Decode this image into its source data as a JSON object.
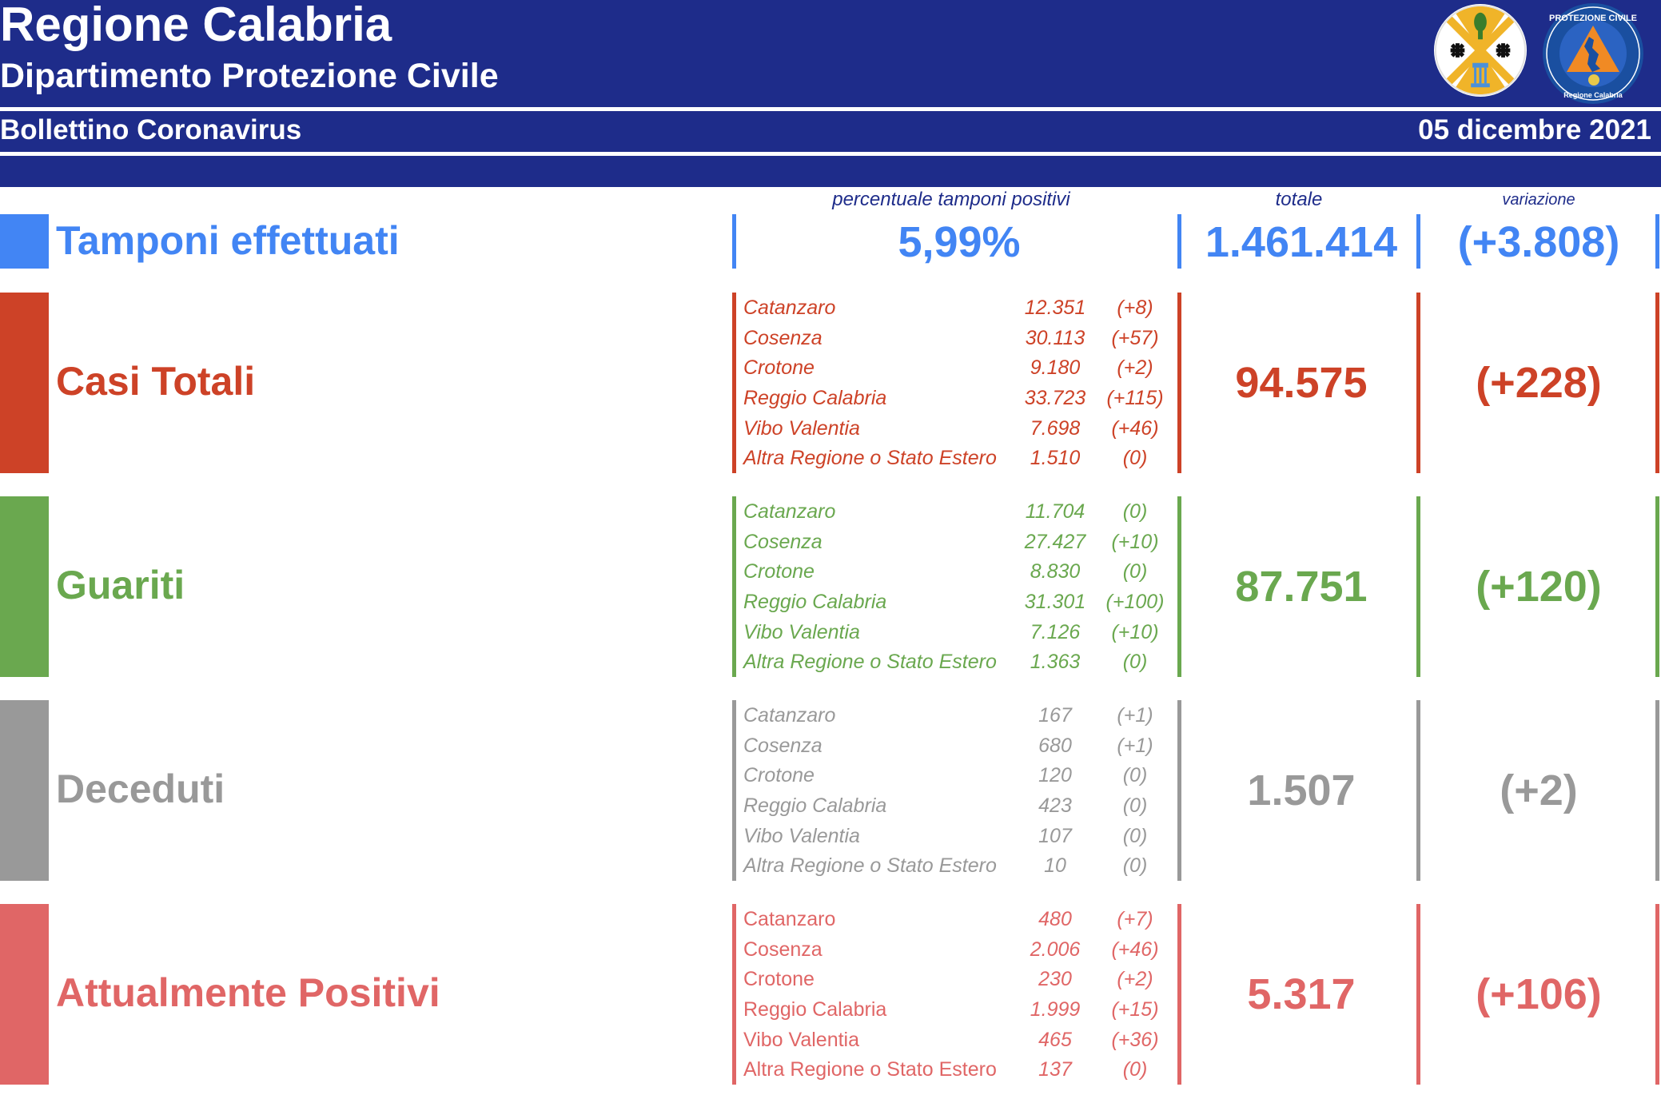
{
  "header": {
    "title": "Regione Calabria",
    "subtitle": "Dipartimento Protezione Civile",
    "bulletin": "Bollettino Coronavirus",
    "date": "05 dicembre 2021",
    "logo_left": {
      "name": "regione-calabria-emblem-icon"
    },
    "logo_right": {
      "name": "protezione-civile-logo-icon",
      "text_top": "PROTEZIONE CIVILE",
      "text_bottom": "Regione Calabria"
    }
  },
  "columns": {
    "pct": "percentuale tamponi positivi",
    "totale": "totale",
    "variazione": "variazione"
  },
  "tamponi": {
    "label": "Tamponi effettuati",
    "pct": "5,99%",
    "totale": "1.461.414",
    "variazione": "(+3.808)",
    "color": "#4285f4"
  },
  "sections": [
    {
      "key": "casi",
      "label": "Casi Totali",
      "color": "#cd4227",
      "totale": "94.575",
      "variazione": "(+228)",
      "rows": [
        {
          "prov": "Catanzaro",
          "val": "12.351",
          "chg": "(+8)"
        },
        {
          "prov": "Cosenza",
          "val": "30.113",
          "chg": "(+57)"
        },
        {
          "prov": "Crotone",
          "val": "9.180",
          "chg": "(+2)"
        },
        {
          "prov": "Reggio Calabria",
          "val": "33.723",
          "chg": "(+115)"
        },
        {
          "prov": "Vibo Valentia",
          "val": "7.698",
          "chg": "(+46)"
        },
        {
          "prov": "Altra Regione o Stato Estero",
          "val": "1.510",
          "chg": "(0)"
        }
      ]
    },
    {
      "key": "guariti",
      "label": "Guariti",
      "color": "#6aa84f",
      "totale": "87.751",
      "variazione": "(+120)",
      "rows": [
        {
          "prov": "Catanzaro",
          "val": "11.704",
          "chg": "(0)"
        },
        {
          "prov": "Cosenza",
          "val": "27.427",
          "chg": "(+10)"
        },
        {
          "prov": "Crotone",
          "val": "8.830",
          "chg": "(0)"
        },
        {
          "prov": "Reggio Calabria",
          "val": "31.301",
          "chg": "(+100)"
        },
        {
          "prov": "Vibo Valentia",
          "val": "7.126",
          "chg": "(+10)"
        },
        {
          "prov": "Altra Regione o Stato Estero",
          "val": "1.363",
          "chg": "(0)"
        }
      ]
    },
    {
      "key": "deceduti",
      "label": "Deceduti",
      "color": "#999999",
      "totale": "1.507",
      "variazione": "(+2)",
      "rows": [
        {
          "prov": "Catanzaro",
          "val": "167",
          "chg": "(+1)"
        },
        {
          "prov": "Cosenza",
          "val": "680",
          "chg": "(+1)"
        },
        {
          "prov": "Crotone",
          "val": "120",
          "chg": "(0)"
        },
        {
          "prov": "Reggio Calabria",
          "val": "423",
          "chg": "(0)"
        },
        {
          "prov": "Vibo Valentia",
          "val": "107",
          "chg": "(0)"
        },
        {
          "prov": "Altra Regione o Stato Estero",
          "val": "10",
          "chg": "(0)"
        }
      ]
    },
    {
      "key": "positivi",
      "label": "Attualmente Positivi",
      "color": "#e06666",
      "totale": "5.317",
      "variazione": "(+106)",
      "rows": [
        {
          "prov": "Catanzaro",
          "val": "480",
          "chg": "(+7)"
        },
        {
          "prov": "Cosenza",
          "val": "2.006",
          "chg": "(+46)"
        },
        {
          "prov": "Crotone",
          "val": "230",
          "chg": "(+2)"
        },
        {
          "prov": "Reggio Calabria",
          "val": "1.999",
          "chg": "(+15)"
        },
        {
          "prov": "Vibo Valentia",
          "val": "465",
          "chg": "(+36)"
        },
        {
          "prov": "Altra Regione o Stato Estero",
          "val": "137",
          "chg": "(0)"
        }
      ]
    }
  ]
}
